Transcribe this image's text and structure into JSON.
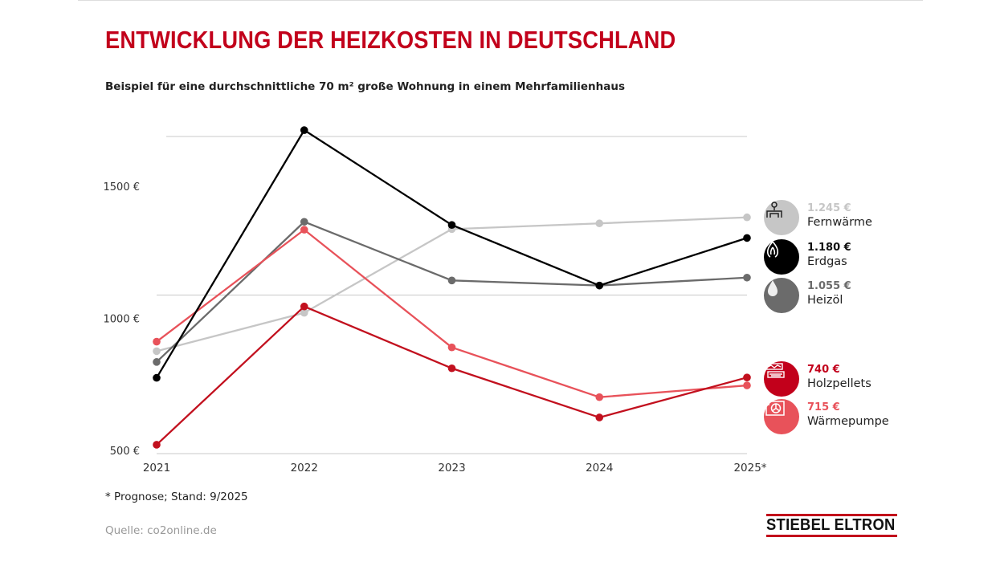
{
  "title": "ENTWICKLUNG DER HEIZKOSTEN IN DEUTSCHLAND",
  "subtitle": "Beispiel für eine durchschnittliche 70 m² große Wohnung in einem Mehrfamilienhaus",
  "note": "* Prognose; Stand: 9/2025",
  "source": "Quelle: co2online.de",
  "logo": "STIEBEL ELTRON",
  "chart_data": {
    "type": "line",
    "title": "ENTWICKLUNG DER HEIZKOSTEN IN DEUTSCHLAND",
    "categories": [
      "2021",
      "2022",
      "2023",
      "2024",
      "2025*"
    ],
    "y_ticks": [
      500,
      1000,
      1500
    ],
    "y_tick_labels": [
      "500 €",
      "1000 €",
      "1500 €"
    ],
    "ylim": [
      500,
      1750
    ],
    "grid": true,
    "legend_placement": "right",
    "series": [
      {
        "name": "Fernwärme",
        "label_value": "1.245 €",
        "color": "#c6c6c6",
        "icon": "district-heating-pipe-icon",
        "values": [
          823,
          944,
          1208,
          1226,
          1245
        ]
      },
      {
        "name": "Erdgas",
        "label_value": "1.180 €",
        "color": "#000000",
        "icon": "gas-flame-icon",
        "values": [
          739,
          1520,
          1221,
          1030,
          1180
        ]
      },
      {
        "name": "Heizöl",
        "label_value": "1.055 €",
        "color": "#6b6b6b",
        "icon": "oil-drop-icon",
        "values": [
          789,
          1231,
          1046,
          1030,
          1055
        ]
      },
      {
        "name": "Holzpellets",
        "label_value": "740 €",
        "color": "#c2101e",
        "icon": "wood-pellets-icon",
        "values": [
          528,
          964,
          769,
          614,
          740
        ]
      },
      {
        "name": "Wärmepumpe",
        "label_value": "715 €",
        "color": "#e8525a",
        "icon": "heat-pump-icon",
        "values": [
          853,
          1206,
          835,
          678,
          715
        ]
      }
    ]
  }
}
